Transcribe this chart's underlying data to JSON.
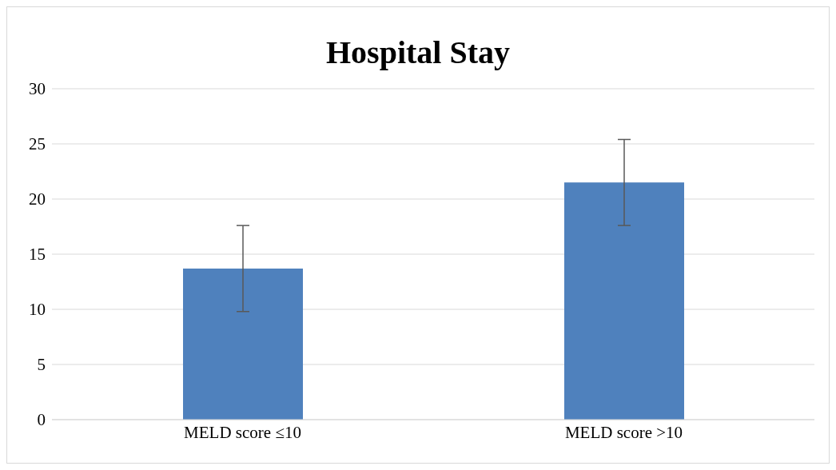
{
  "chart_data": {
    "type": "bar",
    "title": "Hospital Stay",
    "categories": [
      "MELD score ≤10",
      "MELD score >10"
    ],
    "values": [
      13.7,
      21.5
    ],
    "errors": [
      3.9,
      3.9
    ],
    "color": "#4f81bd",
    "ylim": [
      0,
      30
    ],
    "yticks": [
      0,
      5,
      10,
      15,
      20,
      25,
      30
    ],
    "grid": "y"
  }
}
